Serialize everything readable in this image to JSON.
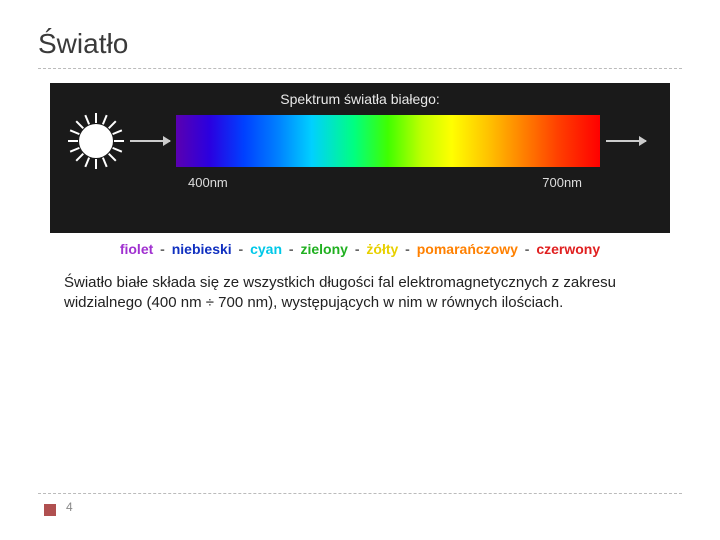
{
  "title": "Światło",
  "figure": {
    "caption": "Spektrum światła białego:",
    "label_left": "400nm",
    "label_right": "700nm",
    "background": "#1a1a1a",
    "gradient_stops": [
      "#5a00b0",
      "#2a00e0",
      "#0040ff",
      "#0080ff",
      "#00d0ff",
      "#00ff80",
      "#40ff00",
      "#c0ff00",
      "#ffff00",
      "#ffc000",
      "#ff8000",
      "#ff4000",
      "#ff0000"
    ]
  },
  "color_labels": [
    {
      "text": "fiolet",
      "color": "#a030d0"
    },
    {
      "text": "niebieski",
      "color": "#1030c0"
    },
    {
      "text": "cyan",
      "color": "#00c8e8"
    },
    {
      "text": "zielony",
      "color": "#20b020"
    },
    {
      "text": "żółty",
      "color": "#e8d000"
    },
    {
      "text": "pomarańczowy",
      "color": "#ff8000"
    },
    {
      "text": "czerwony",
      "color": "#e02020"
    }
  ],
  "separator": "-",
  "body": "Światło białe składa się ze wszystkich długości fal elektromagnetycznych z zakresu widzialnego (400 nm ÷ 700 nm), występujących w nim w równych ilościach.",
  "page_number": "4",
  "accent_color": "#b05050"
}
